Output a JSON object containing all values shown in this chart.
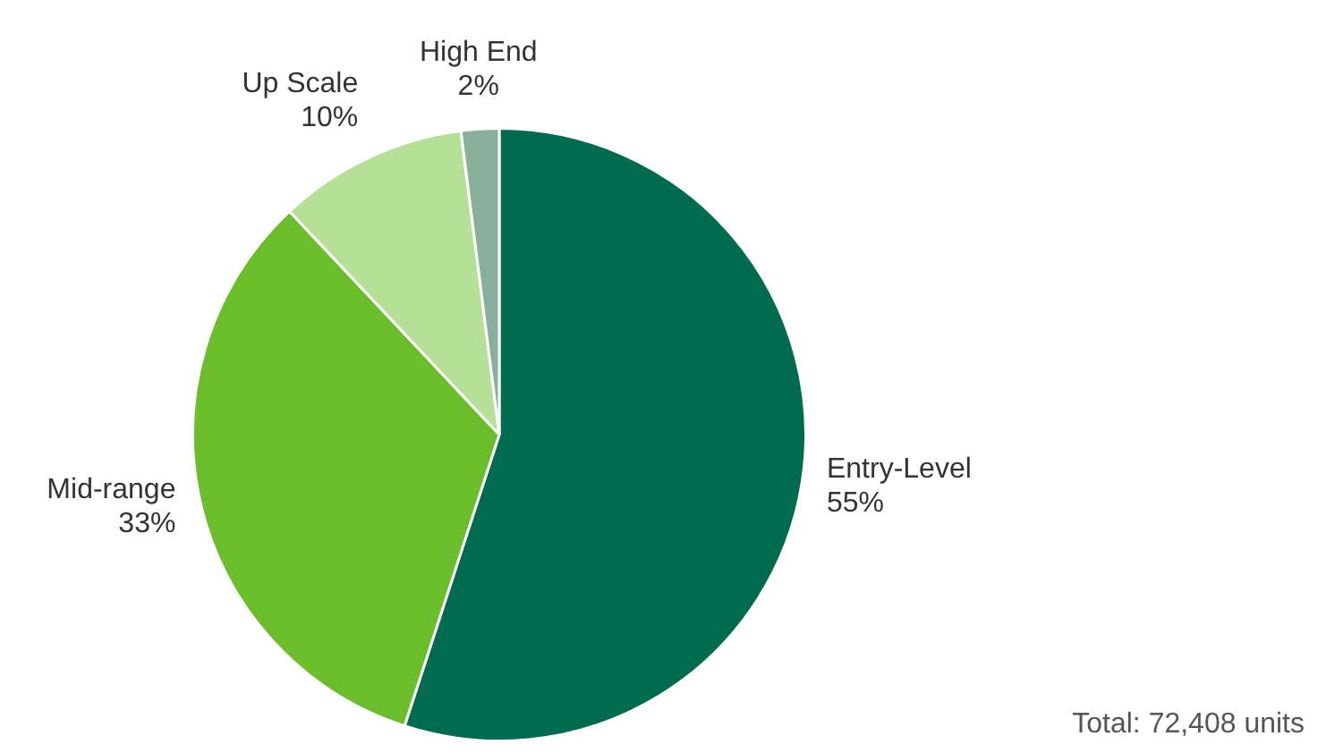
{
  "chart_data": {
    "type": "pie",
    "categories": [
      "Entry-Level",
      "Mid-range",
      "Up Scale",
      "High End"
    ],
    "values": [
      55,
      33,
      10,
      2
    ],
    "colors": [
      "#006b4f",
      "#6cbd2b",
      "#b6df98",
      "#8aae9c"
    ],
    "value_labels": [
      "55%",
      "33%",
      "10%",
      "2%"
    ],
    "legend": false,
    "annotations": [
      "Total: 72,408 units"
    ]
  }
}
